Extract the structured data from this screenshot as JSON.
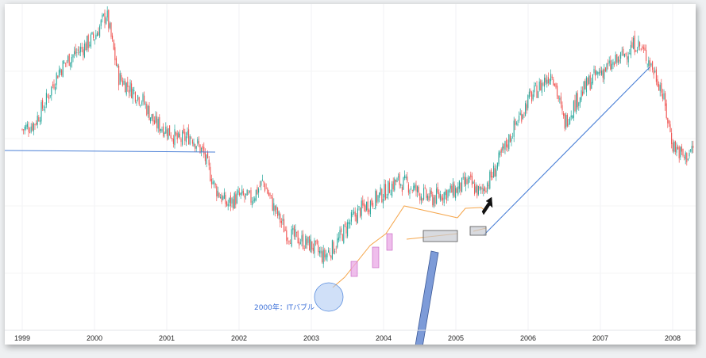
{
  "chart_data": {
    "type": "candlestick",
    "title": "",
    "xlabel": "",
    "ylabel": "",
    "x_ticks": [
      "1999",
      "2000",
      "2001",
      "2002",
      "2003",
      "2004",
      "2005",
      "2006",
      "2007",
      "2008"
    ],
    "grid": true,
    "colors": {
      "up": "#26a69a",
      "down": "#ef5350",
      "trendline": "#4a7fd6",
      "channel": "#f5a54a",
      "highlight_box": "#c7cbd1",
      "pink_box": "#e9a8e6",
      "circle": "#a9c7f2"
    },
    "series": [
      {
        "points": [
          [
            "1999-01",
            0.6
          ],
          [
            "1999-03",
            0.62
          ],
          [
            "1999-05",
            0.7
          ],
          [
            "1999-07",
            0.8
          ],
          [
            "1999-09",
            0.85
          ],
          [
            "1999-11",
            0.88
          ],
          [
            "2000-01",
            0.92
          ],
          [
            "2000-03",
            1.0
          ],
          [
            "2000-05",
            0.78
          ],
          [
            "2000-07",
            0.74
          ],
          [
            "2000-09",
            0.7
          ],
          [
            "2000-11",
            0.62
          ],
          [
            "2001-01",
            0.6
          ],
          [
            "2001-03",
            0.56
          ],
          [
            "2001-05",
            0.58
          ],
          [
            "2001-07",
            0.52
          ],
          [
            "2001-09",
            0.4
          ],
          [
            "2001-11",
            0.34
          ],
          [
            "2002-01",
            0.37
          ],
          [
            "2002-03",
            0.36
          ],
          [
            "2002-05",
            0.42
          ],
          [
            "2002-07",
            0.32
          ],
          [
            "2002-09",
            0.24
          ],
          [
            "2002-11",
            0.22
          ],
          [
            "2003-01",
            0.2
          ],
          [
            "2003-03",
            0.16
          ],
          [
            "2003-05",
            0.2
          ],
          [
            "2003-07",
            0.27
          ],
          [
            "2003-09",
            0.32
          ],
          [
            "2003-11",
            0.35
          ],
          [
            "2004-01",
            0.38
          ],
          [
            "2004-03",
            0.42
          ],
          [
            "2004-05",
            0.41
          ],
          [
            "2004-07",
            0.38
          ],
          [
            "2004-09",
            0.36
          ],
          [
            "2004-11",
            0.38
          ],
          [
            "2005-01",
            0.39
          ],
          [
            "2005-03",
            0.42
          ],
          [
            "2005-05",
            0.38
          ],
          [
            "2005-07",
            0.44
          ],
          [
            "2005-09",
            0.53
          ],
          [
            "2005-11",
            0.62
          ],
          [
            "2006-01",
            0.7
          ],
          [
            "2006-03",
            0.75
          ],
          [
            "2006-05",
            0.8
          ],
          [
            "2006-07",
            0.62
          ],
          [
            "2006-09",
            0.7
          ],
          [
            "2006-11",
            0.76
          ],
          [
            "2007-01",
            0.8
          ],
          [
            "2007-03",
            0.82
          ],
          [
            "2007-05",
            0.86
          ],
          [
            "2007-07",
            0.9
          ],
          [
            "2007-09",
            0.84
          ],
          [
            "2007-11",
            0.75
          ],
          [
            "2008-01",
            0.55
          ],
          [
            "2008-03",
            0.5
          ],
          [
            "2008-05",
            0.55
          ]
        ]
      }
    ],
    "annotations": [
      {
        "kind": "circle-note",
        "text": "2000年：ITバブル",
        "date": "2003-04"
      }
    ]
  }
}
